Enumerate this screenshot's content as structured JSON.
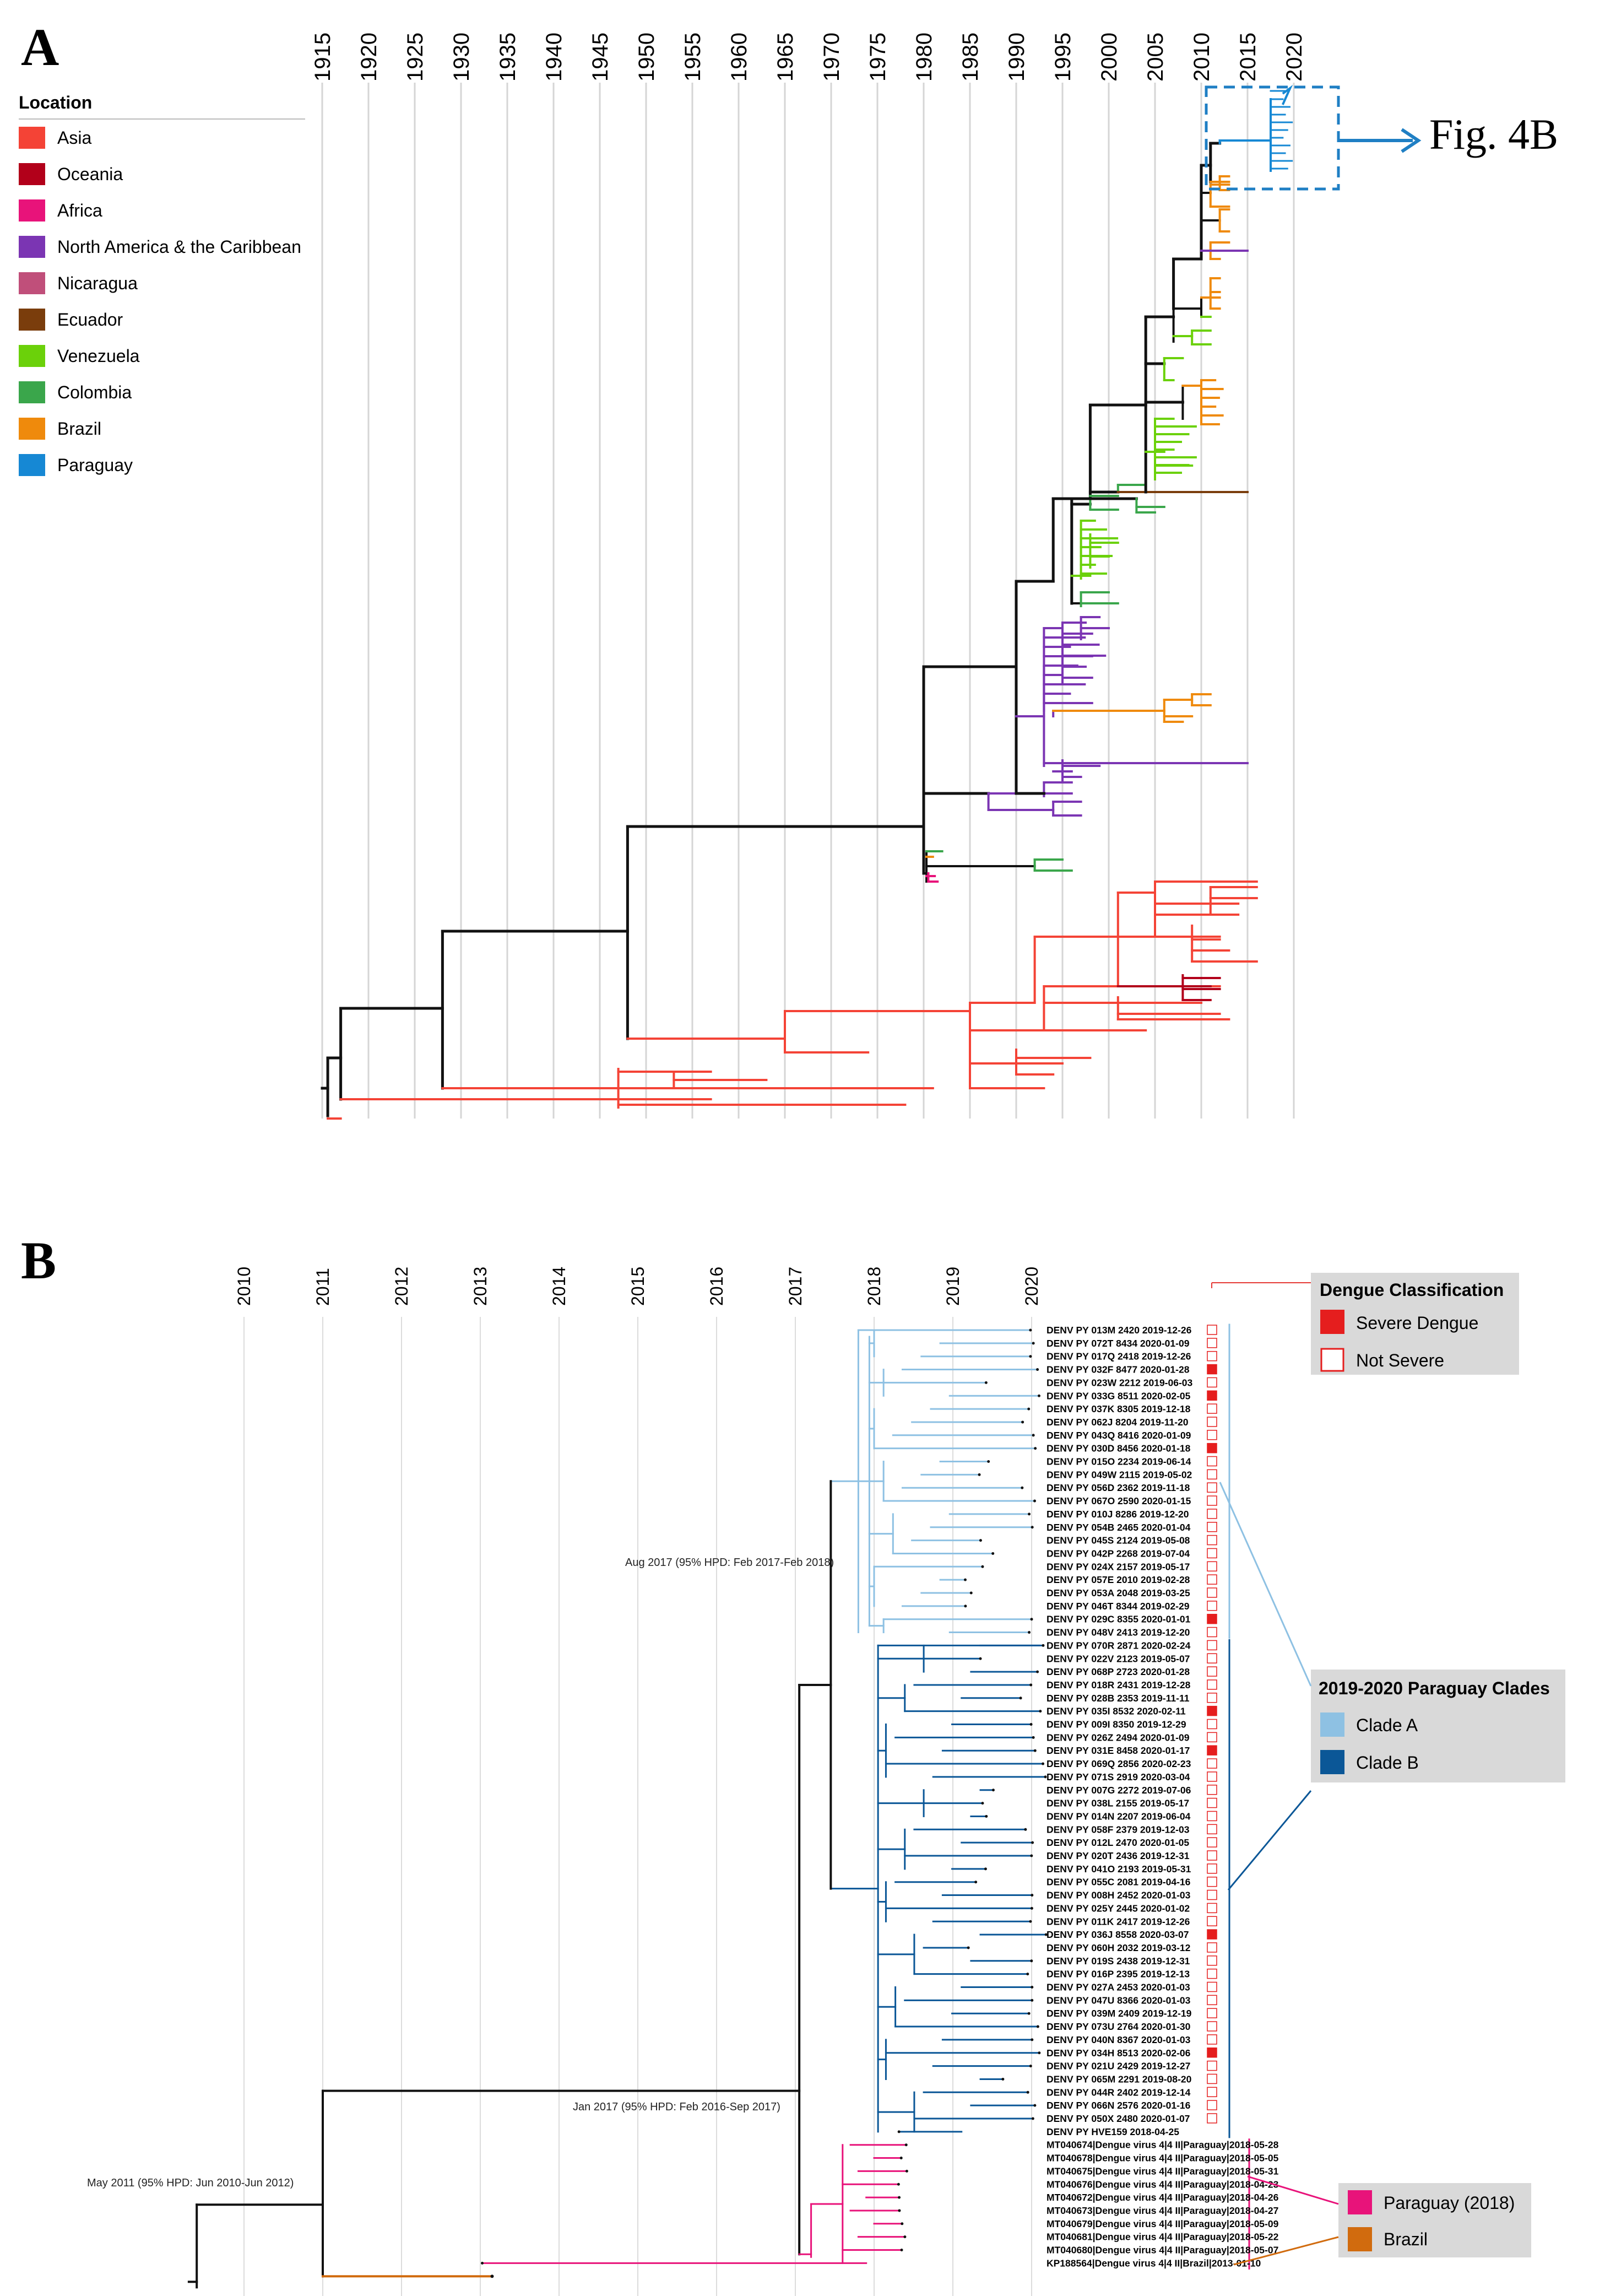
{
  "panel_a": {
    "letter": "A",
    "years": [
      "1915",
      "1920",
      "1925",
      "1930",
      "1935",
      "1940",
      "1945",
      "1950",
      "1955",
      "1960",
      "1965",
      "1970",
      "1975",
      "1980",
      "1985",
      "1990",
      "1995",
      "2000",
      "2005",
      "2010",
      "2015",
      "2020"
    ],
    "legend": {
      "title": "Location",
      "items": [
        {
          "label": "Asia",
          "color": "#f44336"
        },
        {
          "label": "Oceania",
          "color": "#b2001a"
        },
        {
          "label": "Africa",
          "color": "#e8137a"
        },
        {
          "label": "North America & the Caribbean",
          "color": "#7b35b3"
        },
        {
          "label": "Nicaragua",
          "color": "#c04f7a"
        },
        {
          "label": "Ecuador",
          "color": "#7a3d0c"
        },
        {
          "label": "Venezuela",
          "color": "#6bd10a"
        },
        {
          "label": "Colombia",
          "color": "#3aa64b"
        },
        {
          "label": "Brazil",
          "color": "#ef8a0c"
        },
        {
          "label": "Paraguay",
          "color": "#1688d4"
        }
      ]
    },
    "callout": "Fig. 4B"
  },
  "panel_b": {
    "letter": "B",
    "years": [
      "2010",
      "2011",
      "2012",
      "2013",
      "2014",
      "2015",
      "2016",
      "2017",
      "2018",
      "2019",
      "2020"
    ],
    "node_labels": {
      "aug2017": "Aug 2017 (95% HPD: Feb 2017-Feb 2018)",
      "jan2017": "Jan 2017 (95% HPD: Feb 2016-Sep 2017)",
      "may2011": "May 2011 (95% HPD: Jun 2010-Jun 2012)"
    },
    "classification_legend": {
      "title": "Dengue Classification",
      "items": [
        {
          "label": "Severe Dengue",
          "color": "#e51e1e"
        },
        {
          "label": "Not Severe",
          "color": "#ffffff"
        }
      ]
    },
    "clade_legend": {
      "title": "2019-2020 Paraguay Clades",
      "items": [
        {
          "label": "Clade A",
          "color": "#8ec1e3"
        },
        {
          "label": "Clade B",
          "color": "#0b5797"
        }
      ]
    },
    "country_legend": {
      "items": [
        {
          "label": "Paraguay (2018)",
          "color": "#e8137a"
        },
        {
          "label": "Brazil",
          "color": "#d16b0e"
        }
      ]
    },
    "tips": [
      {
        "name": "DENV PY 013M 2420 2019-12-26",
        "severe": false,
        "group": "A"
      },
      {
        "name": "DENV PY 072T 8434 2020-01-09",
        "severe": false,
        "group": "A"
      },
      {
        "name": "DENV PY 017Q 2418 2019-12-26",
        "severe": false,
        "group": "A"
      },
      {
        "name": "DENV PY 032F 8477 2020-01-28",
        "severe": true,
        "group": "A"
      },
      {
        "name": "DENV PY 023W 2212 2019-06-03",
        "severe": false,
        "group": "A"
      },
      {
        "name": "DENV PY 033G 8511 2020-02-05",
        "severe": true,
        "group": "A"
      },
      {
        "name": "DENV PY 037K 8305 2019-12-18",
        "severe": false,
        "group": "A"
      },
      {
        "name": "DENV PY 062J 8204 2019-11-20",
        "severe": false,
        "group": "A"
      },
      {
        "name": "DENV PY 043Q 8416 2020-01-09",
        "severe": false,
        "group": "A"
      },
      {
        "name": "DENV PY 030D 8456 2020-01-18",
        "severe": true,
        "group": "A"
      },
      {
        "name": "DENV PY 015O 2234 2019-06-14",
        "severe": false,
        "group": "A"
      },
      {
        "name": "DENV PY 049W 2115 2019-05-02",
        "severe": false,
        "group": "A"
      },
      {
        "name": "DENV PY 056D 2362 2019-11-18",
        "severe": false,
        "group": "A"
      },
      {
        "name": "DENV PY 067O 2590 2020-01-15",
        "severe": false,
        "group": "A"
      },
      {
        "name": "DENV PY 010J 8286 2019-12-20",
        "severe": false,
        "group": "A"
      },
      {
        "name": "DENV PY 054B 2465 2020-01-04",
        "severe": false,
        "group": "A"
      },
      {
        "name": "DENV PY 045S 2124 2019-05-08",
        "severe": false,
        "group": "A"
      },
      {
        "name": "DENV PY 042P 2268 2019-07-04",
        "severe": false,
        "group": "A"
      },
      {
        "name": "DENV PY 024X 2157 2019-05-17",
        "severe": false,
        "group": "A"
      },
      {
        "name": "DENV PY 057E 2010 2019-02-28",
        "severe": false,
        "group": "A"
      },
      {
        "name": "DENV PY 053A 2048 2019-03-25",
        "severe": false,
        "group": "A"
      },
      {
        "name": "DENV PY 046T 8344 2019-02-29",
        "severe": false,
        "group": "A"
      },
      {
        "name": "DENV PY 029C 8355 2020-01-01",
        "severe": true,
        "group": "A"
      },
      {
        "name": "DENV PY 048V 2413 2019-12-20",
        "severe": false,
        "group": "A"
      },
      {
        "name": "DENV PY 070R 2871 2020-02-24",
        "severe": false,
        "group": "B"
      },
      {
        "name": "DENV PY 022V 2123 2019-05-07",
        "severe": false,
        "group": "B"
      },
      {
        "name": "DENV PY 068P 2723 2020-01-28",
        "severe": false,
        "group": "B"
      },
      {
        "name": "DENV PY 018R 2431 2019-12-28",
        "severe": false,
        "group": "B"
      },
      {
        "name": "DENV PY 028B 2353 2019-11-11",
        "severe": false,
        "group": "B"
      },
      {
        "name": "DENV PY 035I 8532 2020-02-11",
        "severe": true,
        "group": "B"
      },
      {
        "name": "DENV PY 009I 8350 2019-12-29",
        "severe": false,
        "group": "B"
      },
      {
        "name": "DENV PY 026Z 2494 2020-01-09",
        "severe": false,
        "group": "B"
      },
      {
        "name": "DENV PY 031E 8458 2020-01-17",
        "severe": true,
        "group": "B"
      },
      {
        "name": "DENV PY 069Q 2856 2020-02-23",
        "severe": false,
        "group": "B"
      },
      {
        "name": "DENV PY 071S 2919 2020-03-04",
        "severe": false,
        "group": "B"
      },
      {
        "name": "DENV PY 007G 2272 2019-07-06",
        "severe": false,
        "group": "B"
      },
      {
        "name": "DENV PY 038L 2155 2019-05-17",
        "severe": false,
        "group": "B"
      },
      {
        "name": "DENV PY 014N 2207 2019-06-04",
        "severe": false,
        "group": "B"
      },
      {
        "name": "DENV PY 058F 2379 2019-12-03",
        "severe": false,
        "group": "B"
      },
      {
        "name": "DENV PY 012L 2470 2020-01-05",
        "severe": false,
        "group": "B"
      },
      {
        "name": "DENV PY 020T 2436 2019-12-31",
        "severe": false,
        "group": "B"
      },
      {
        "name": "DENV PY 041O 2193 2019-05-31",
        "severe": false,
        "group": "B"
      },
      {
        "name": "DENV PY 055C 2081 2019-04-16",
        "severe": false,
        "group": "B"
      },
      {
        "name": "DENV PY 008H 2452 2020-01-03",
        "severe": false,
        "group": "B"
      },
      {
        "name": "DENV PY 025Y 2445 2020-01-02",
        "severe": false,
        "group": "B"
      },
      {
        "name": "DENV PY 011K 2417 2019-12-26",
        "severe": false,
        "group": "B"
      },
      {
        "name": "DENV PY 036J 8558 2020-03-07",
        "severe": true,
        "group": "B"
      },
      {
        "name": "DENV PY 060H 2032 2019-03-12",
        "severe": false,
        "group": "B"
      },
      {
        "name": "DENV PY 019S 2438 2019-12-31",
        "severe": false,
        "group": "B"
      },
      {
        "name": "DENV PY 016P 2395 2019-12-13",
        "severe": false,
        "group": "B"
      },
      {
        "name": "DENV PY 027A 2453 2020-01-03",
        "severe": false,
        "group": "B"
      },
      {
        "name": "DENV PY 047U 8366 2020-01-03",
        "severe": false,
        "group": "B"
      },
      {
        "name": "DENV PY 039M 2409 2019-12-19",
        "severe": false,
        "group": "B"
      },
      {
        "name": "DENV PY 073U 2764 2020-01-30",
        "severe": false,
        "group": "B"
      },
      {
        "name": "DENV PY 040N 8367 2020-01-03",
        "severe": false,
        "group": "B"
      },
      {
        "name": "DENV PY 034H 8513 2020-02-06",
        "severe": true,
        "group": "B"
      },
      {
        "name": "DENV PY 021U 2429 2019-12-27",
        "severe": false,
        "group": "B"
      },
      {
        "name": "DENV PY 065M 2291 2019-08-20",
        "severe": false,
        "group": "B"
      },
      {
        "name": "DENV PY 044R 2402 2019-12-14",
        "severe": false,
        "group": "B"
      },
      {
        "name": "DENV PY 066N 2576 2020-01-16",
        "severe": false,
        "group": "B"
      },
      {
        "name": "DENV PY 050X 2480 2020-01-07",
        "severe": false,
        "group": "B"
      },
      {
        "name": "DENV PY HVE159 2018-04-25",
        "severe": false,
        "group": "P"
      },
      {
        "name": "MT040674|Dengue virus 4|4 II|Paraguay|2018-05-28",
        "severe": false,
        "group": "P"
      },
      {
        "name": "MT040678|Dengue virus 4|4 II|Paraguay|2018-05-05",
        "severe": false,
        "group": "P"
      },
      {
        "name": "MT040675|Dengue virus 4|4 II|Paraguay|2018-05-31",
        "severe": false,
        "group": "P"
      },
      {
        "name": "MT040676|Dengue virus 4|4 II|Paraguay|2018-04-23",
        "severe": false,
        "group": "P"
      },
      {
        "name": "MT040672|Dengue virus 4|4 II|Paraguay|2018-04-26",
        "severe": false,
        "group": "P"
      },
      {
        "name": "MT040673|Dengue virus 4|4 II|Paraguay|2018-04-27",
        "severe": false,
        "group": "P"
      },
      {
        "name": "MT040679|Dengue virus 4|4 II|Paraguay|2018-05-09",
        "severe": false,
        "group": "P"
      },
      {
        "name": "MT040681|Dengue virus 4|4 II|Paraguay|2018-05-22",
        "severe": false,
        "group": "P"
      },
      {
        "name": "MT040680|Dengue virus 4|4 II|Paraguay|2018-05-07",
        "severe": false,
        "group": "P"
      },
      {
        "name": "KP188564|Dengue virus 4|4 II|Brazil|2013-01-10",
        "severe": false,
        "group": "R"
      }
    ]
  }
}
